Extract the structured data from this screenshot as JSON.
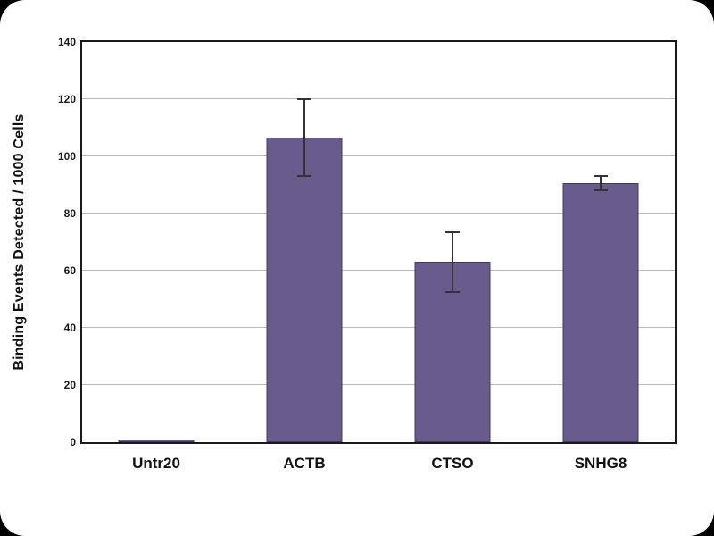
{
  "chart_data": {
    "type": "bar",
    "categories": [
      "Untr20",
      "ACTB",
      "CTSO",
      "SNHG8"
    ],
    "values": [
      1,
      106.5,
      63,
      90.5
    ],
    "errors": [
      0,
      13.5,
      10.5,
      2.5
    ],
    "title": "",
    "xlabel": "",
    "ylabel": "Binding Events Detected / 1000 Cells",
    "ylim": [
      0,
      140
    ],
    "yticks": [
      0,
      20,
      40,
      60,
      80,
      100,
      120,
      140
    ],
    "grid": true,
    "legend": "none",
    "bar_color": "#6a5b8d",
    "bar_border_color": "#453a5c",
    "error_color": "#333333",
    "gridline_color": "#b9b9b9"
  }
}
